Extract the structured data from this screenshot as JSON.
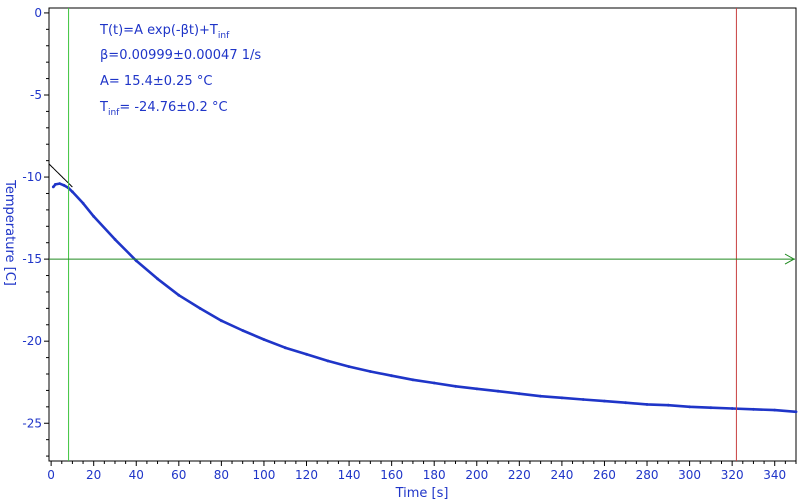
{
  "chart_data": {
    "type": "line",
    "title": "",
    "xlabel": "Time [s]",
    "ylabel": "Temperature [C]",
    "xlim": [
      -1,
      350
    ],
    "ylim": [
      -27.3,
      0.3
    ],
    "xticks": [
      0,
      20,
      40,
      60,
      80,
      100,
      120,
      140,
      160,
      180,
      200,
      220,
      240,
      260,
      280,
      300,
      320,
      340
    ],
    "yticks": [
      0,
      -5,
      -10,
      -15,
      -20,
      -25
    ],
    "grid": false,
    "colors": {
      "data": "#1f35c8",
      "fit": "#000000",
      "left_cursor": "#3cc43c",
      "right_cursor": "#c84040",
      "horizontal_cursor": "#208a20",
      "axis_text": "#1f35c8",
      "frame": "#000000"
    },
    "cursors": {
      "vertical_left_x": 8.2,
      "vertical_right_x": 322,
      "horizontal_y": -15.0
    },
    "fit": {
      "label_main": "T(t)=A exp(-βt)+T",
      "label_main_sub": "inf",
      "beta_text": "β=0.00999±0.00047 1/s",
      "A_text": "A= 15.4±0.25 °C",
      "tinf_prefix": "T",
      "tinf_sub": "inf",
      "tinf_text": "= -24.76±0.2 °C",
      "A": 15.4,
      "beta": 0.00999,
      "T_inf": -24.76,
      "x_start": -1,
      "x_end": 10
    },
    "series": [
      {
        "x": [
          1,
          2,
          4,
          6,
          8,
          10,
          15,
          20,
          30,
          40,
          50,
          60,
          70,
          80,
          90,
          100,
          110,
          120,
          130,
          140,
          150,
          160,
          170,
          180,
          190,
          200,
          210,
          220,
          230,
          240,
          250,
          260,
          270,
          280,
          290,
          300,
          310,
          320,
          330,
          340,
          350
        ],
        "y": [
          -10.6,
          -10.45,
          -10.4,
          -10.5,
          -10.65,
          -10.9,
          -11.6,
          -12.4,
          -13.8,
          -15.1,
          -16.2,
          -17.2,
          -18.0,
          -18.75,
          -19.35,
          -19.9,
          -20.4,
          -20.8,
          -21.2,
          -21.55,
          -21.85,
          -22.1,
          -22.35,
          -22.55,
          -22.75,
          -22.9,
          -23.05,
          -23.2,
          -23.35,
          -23.45,
          -23.55,
          -23.65,
          -23.75,
          -23.85,
          -23.9,
          -24.0,
          -24.05,
          -24.1,
          -24.15,
          -24.2,
          -24.3
        ]
      }
    ]
  }
}
